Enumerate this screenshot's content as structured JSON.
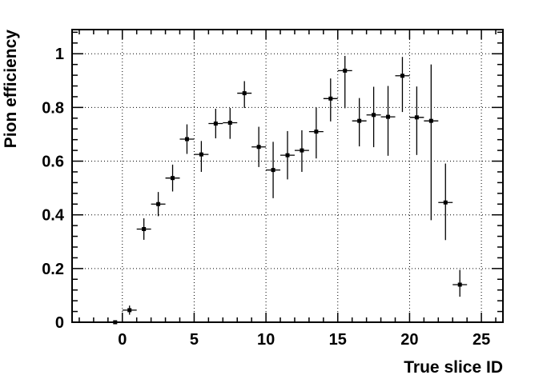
{
  "chart_data": {
    "type": "scatter",
    "title": "",
    "xlabel": "True slice ID",
    "ylabel": "Pion efficiency",
    "xlim": [
      -3.5,
      26.5
    ],
    "ylim": [
      0,
      1.09
    ],
    "grid": true,
    "legend": "none",
    "x_ticks": [
      0,
      5,
      10,
      15,
      20,
      25
    ],
    "y_ticks": [
      0,
      0.2,
      0.4,
      0.6,
      0.8,
      1
    ],
    "x_tick_labels": [
      "0",
      "5",
      "10",
      "15",
      "20",
      "25"
    ],
    "y_tick_labels": [
      "0",
      "0.2",
      "0.4",
      "0.6",
      "0.8",
      "1"
    ],
    "x_error": 0.5,
    "series": [
      {
        "marker_color": "#000000",
        "x": [
          -0.5,
          0.5,
          1.5,
          2.5,
          3.5,
          4.5,
          5.5,
          6.5,
          7.5,
          8.5,
          9.5,
          10.5,
          11.5,
          12.5,
          13.5,
          14.5,
          15.5,
          16.5,
          17.5,
          18.5,
          19.5,
          20.5,
          21.5,
          22.5,
          23.5
        ],
        "y": [
          0.0,
          0.045,
          0.347,
          0.44,
          0.537,
          0.682,
          0.625,
          0.74,
          0.743,
          0.853,
          0.653,
          0.567,
          0.622,
          0.64,
          0.71,
          0.833,
          0.937,
          0.75,
          0.772,
          0.765,
          0.918,
          0.763,
          0.75,
          0.446,
          0.14
        ],
        "y_err_low": [
          0.0,
          0.017,
          0.04,
          0.045,
          0.05,
          0.055,
          0.065,
          0.055,
          0.06,
          0.055,
          0.075,
          0.105,
          0.09,
          0.08,
          0.1,
          0.085,
          0.14,
          0.095,
          0.12,
          0.145,
          0.135,
          0.14,
          0.37,
          0.14,
          0.045
        ],
        "y_err_high": [
          0.0,
          0.017,
          0.04,
          0.045,
          0.05,
          0.055,
          0.05,
          0.055,
          0.055,
          0.045,
          0.075,
          0.105,
          0.09,
          0.075,
          0.09,
          0.075,
          0.055,
          0.085,
          0.105,
          0.115,
          0.07,
          0.115,
          0.21,
          0.145,
          0.055
        ]
      }
    ]
  }
}
